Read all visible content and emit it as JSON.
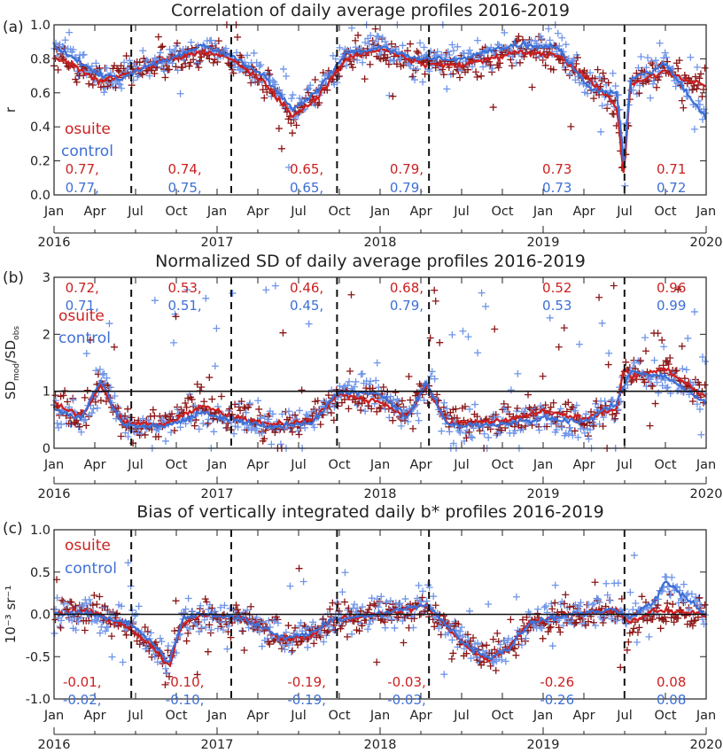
{
  "colors": {
    "osuite": "#cc1f1f",
    "control": "#3d6fd6",
    "scatter_osuite": "#8b1616",
    "scatter_control": "#6f94e8"
  },
  "year_labels": [
    "2016",
    "2017",
    "2018",
    "2019",
    "2020"
  ],
  "month_labels": [
    "Jan",
    "Apr",
    "Jul",
    "Oct",
    "Jan",
    "Apr",
    "Jul",
    "Oct",
    "Jan",
    "Apr",
    "Jul",
    "Oct",
    "Jan",
    "Apr",
    "Jul",
    "Oct",
    "Jan"
  ],
  "legend": {
    "osuite": "osuite",
    "control": "control"
  },
  "chart_data": [
    {
      "type": "scatter",
      "panel": "(a)",
      "title": "Correlation of daily average profiles 2016-2019",
      "ylabel": "r",
      "ylim": [
        0,
        1
      ],
      "yticks": [
        "0.0",
        "0.2",
        "0.4",
        "0.6",
        "0.8",
        "1.0"
      ],
      "xlim": [
        "2016-01-01",
        "2020-01-01"
      ],
      "period_boundaries": [
        "2016-06-22",
        "2017-02-01",
        "2017-09-26",
        "2018-04-20",
        "2019-07-02"
      ],
      "legend_position": "left-middle",
      "series": [
        {
          "name": "osuite",
          "anchors": [
            [
              "2016-01-01",
              0.82
            ],
            [
              "2016-04-15",
              0.67
            ],
            [
              "2016-06-01",
              0.7
            ],
            [
              "2016-09-01",
              0.79
            ],
            [
              "2016-12-01",
              0.84
            ],
            [
              "2017-02-01",
              0.8
            ],
            [
              "2017-04-15",
              0.66
            ],
            [
              "2017-06-20",
              0.46
            ],
            [
              "2017-08-15",
              0.58
            ],
            [
              "2017-10-15",
              0.8
            ],
            [
              "2018-01-01",
              0.86
            ],
            [
              "2018-04-01",
              0.77
            ],
            [
              "2018-07-01",
              0.76
            ],
            [
              "2018-09-01",
              0.8
            ],
            [
              "2018-11-01",
              0.84
            ],
            [
              "2019-02-01",
              0.82
            ],
            [
              "2019-04-15",
              0.68
            ],
            [
              "2019-06-15",
              0.52
            ],
            [
              "2019-07-01",
              0.1
            ],
            [
              "2019-07-15",
              0.65
            ],
            [
              "2019-10-01",
              0.72
            ],
            [
              "2019-12-31",
              0.64
            ]
          ]
        },
        {
          "name": "control",
          "anchors": [
            [
              "2016-01-01",
              0.88
            ],
            [
              "2016-04-15",
              0.7
            ],
            [
              "2016-06-01",
              0.69
            ],
            [
              "2016-09-01",
              0.79
            ],
            [
              "2016-12-01",
              0.88
            ],
            [
              "2017-02-01",
              0.82
            ],
            [
              "2017-04-15",
              0.7
            ],
            [
              "2017-06-20",
              0.5
            ],
            [
              "2017-08-15",
              0.62
            ],
            [
              "2017-10-15",
              0.83
            ],
            [
              "2018-01-01",
              0.87
            ],
            [
              "2018-04-01",
              0.8
            ],
            [
              "2018-07-01",
              0.8
            ],
            [
              "2018-09-01",
              0.84
            ],
            [
              "2018-11-01",
              0.88
            ],
            [
              "2019-02-01",
              0.87
            ],
            [
              "2019-04-15",
              0.62
            ],
            [
              "2019-06-15",
              0.6
            ],
            [
              "2019-07-01",
              0.18
            ],
            [
              "2019-07-15",
              0.68
            ],
            [
              "2019-10-01",
              0.77
            ],
            [
              "2019-12-31",
              0.45
            ]
          ]
        }
      ],
      "period_stats": [
        {
          "date": "2016-03-04",
          "osuite": "0.77,",
          "control": "0.77,"
        },
        {
          "date": "2016-10-20",
          "osuite": "0.74,",
          "control": "0.75,"
        },
        {
          "date": "2017-07-20",
          "osuite": "0.65,",
          "control": "0.65,"
        },
        {
          "date": "2018-03-01",
          "osuite": "0.79,",
          "control": "0.79,"
        },
        {
          "date": "2019-02-01",
          "osuite": "0.73",
          "control": "0.73"
        },
        {
          "date": "2019-10-15",
          "osuite": "0.71",
          "control": "0.72"
        }
      ]
    },
    {
      "type": "scatter",
      "panel": "(b)",
      "title": "Normalized SD of daily average profiles 2016-2019",
      "ylabel": "SDmod/SDobs",
      "ylim": [
        0,
        3
      ],
      "yticks": [
        "0",
        "1",
        "2",
        "3"
      ],
      "reference_line": 1,
      "xlim": [
        "2016-01-01",
        "2020-01-01"
      ],
      "period_boundaries": [
        "2016-06-22",
        "2017-02-01",
        "2017-09-26",
        "2018-04-20",
        "2019-07-02"
      ],
      "legend_position": "top-left",
      "series": [
        {
          "name": "osuite",
          "anchors": [
            [
              "2016-01-01",
              0.8
            ],
            [
              "2016-03-01",
              0.55
            ],
            [
              "2016-04-15",
              1.1
            ],
            [
              "2016-06-01",
              0.45
            ],
            [
              "2016-09-01",
              0.4
            ],
            [
              "2016-12-01",
              0.75
            ],
            [
              "2017-02-01",
              0.55
            ],
            [
              "2017-05-01",
              0.42
            ],
            [
              "2017-08-01",
              0.48
            ],
            [
              "2017-10-01",
              0.95
            ],
            [
              "2018-01-01",
              0.8
            ],
            [
              "2018-03-01",
              0.55
            ],
            [
              "2018-04-15",
              1.1
            ],
            [
              "2018-06-01",
              0.45
            ],
            [
              "2018-10-01",
              0.48
            ],
            [
              "2019-01-01",
              0.65
            ],
            [
              "2019-04-01",
              0.52
            ],
            [
              "2019-06-15",
              0.7
            ],
            [
              "2019-07-01",
              1.45
            ],
            [
              "2019-07-15",
              1.25
            ],
            [
              "2019-10-01",
              1.4
            ],
            [
              "2019-12-31",
              0.9
            ]
          ]
        },
        {
          "name": "control",
          "anchors": [
            [
              "2016-01-01",
              0.7
            ],
            [
              "2016-03-01",
              0.5
            ],
            [
              "2016-04-15",
              1.2
            ],
            [
              "2016-06-01",
              0.42
            ],
            [
              "2016-09-01",
              0.38
            ],
            [
              "2016-12-01",
              0.62
            ],
            [
              "2017-02-01",
              0.5
            ],
            [
              "2017-05-01",
              0.38
            ],
            [
              "2017-08-01",
              0.45
            ],
            [
              "2017-10-01",
              1.0
            ],
            [
              "2018-01-01",
              0.95
            ],
            [
              "2018-03-01",
              0.55
            ],
            [
              "2018-04-15",
              1.15
            ],
            [
              "2018-06-01",
              0.4
            ],
            [
              "2018-10-01",
              0.42
            ],
            [
              "2019-01-01",
              0.52
            ],
            [
              "2019-04-01",
              0.45
            ],
            [
              "2019-06-15",
              0.8
            ],
            [
              "2019-07-01",
              1.1
            ],
            [
              "2019-07-15",
              1.35
            ],
            [
              "2019-10-01",
              1.25
            ],
            [
              "2019-12-31",
              0.8
            ]
          ]
        }
      ],
      "period_stats": [
        {
          "date": "2016-03-04",
          "osuite": "0.72,",
          "control": "0.71,"
        },
        {
          "date": "2016-10-20",
          "osuite": "0.53,",
          "control": "0.51,"
        },
        {
          "date": "2017-07-20",
          "osuite": "0.46,",
          "control": "0.45,"
        },
        {
          "date": "2018-03-01",
          "osuite": "0.68,",
          "control": "0.79,"
        },
        {
          "date": "2019-02-01",
          "osuite": "0.52",
          "control": "0.53"
        },
        {
          "date": "2019-10-15",
          "osuite": "0.96",
          "control": "0.99"
        }
      ]
    },
    {
      "type": "scatter",
      "panel": "(c)",
      "title": "Bias of vertically integrated daily b* profiles 2016-2019",
      "ylabel": "10⁻³ sr⁻¹",
      "ylim": [
        -1,
        1
      ],
      "yticks": [
        "-1.0",
        "-0.5",
        "0.0",
        "0.5",
        "1.0"
      ],
      "reference_line": 0,
      "xlim": [
        "2016-01-01",
        "2020-01-01"
      ],
      "period_boundaries": [
        "2016-06-22",
        "2017-02-01",
        "2017-09-26",
        "2018-04-20",
        "2019-07-02"
      ],
      "legend_position": "top-left",
      "series": [
        {
          "name": "osuite",
          "anchors": [
            [
              "2016-01-01",
              0.0
            ],
            [
              "2016-03-15",
              0.05
            ],
            [
              "2016-05-01",
              -0.05
            ],
            [
              "2016-06-15",
              -0.15
            ],
            [
              "2016-08-01",
              -0.35
            ],
            [
              "2016-09-15",
              -0.62
            ],
            [
              "2016-10-15",
              -0.1
            ],
            [
              "2016-12-01",
              0.0
            ],
            [
              "2017-03-01",
              -0.05
            ],
            [
              "2017-06-01",
              -0.3
            ],
            [
              "2017-08-01",
              -0.25
            ],
            [
              "2017-09-20",
              -0.05
            ],
            [
              "2018-01-01",
              0.0
            ],
            [
              "2018-04-15",
              0.1
            ],
            [
              "2018-05-15",
              -0.05
            ],
            [
              "2018-07-15",
              -0.4
            ],
            [
              "2018-09-01",
              -0.55
            ],
            [
              "2018-10-15",
              -0.4
            ],
            [
              "2018-12-01",
              -0.1
            ],
            [
              "2019-03-01",
              0.0
            ],
            [
              "2019-06-15",
              0.05
            ],
            [
              "2019-07-15",
              -0.1
            ],
            [
              "2019-09-15",
              0.05
            ],
            [
              "2019-12-31",
              0.0
            ]
          ]
        },
        {
          "name": "control",
          "anchors": [
            [
              "2016-01-01",
              0.0
            ],
            [
              "2016-03-15",
              0.02
            ],
            [
              "2016-05-01",
              -0.05
            ],
            [
              "2016-06-15",
              -0.1
            ],
            [
              "2016-08-01",
              -0.3
            ],
            [
              "2016-09-15",
              -0.58
            ],
            [
              "2016-10-15",
              -0.05
            ],
            [
              "2016-12-01",
              0.0
            ],
            [
              "2017-03-01",
              -0.05
            ],
            [
              "2017-06-01",
              -0.28
            ],
            [
              "2017-08-01",
              -0.22
            ],
            [
              "2017-09-20",
              -0.05
            ],
            [
              "2018-01-01",
              0.0
            ],
            [
              "2018-04-15",
              0.12
            ],
            [
              "2018-05-15",
              -0.05
            ],
            [
              "2018-07-15",
              -0.38
            ],
            [
              "2018-09-01",
              -0.52
            ],
            [
              "2018-10-15",
              -0.4
            ],
            [
              "2018-12-01",
              -0.1
            ],
            [
              "2019-03-01",
              0.0
            ],
            [
              "2019-06-15",
              0.05
            ],
            [
              "2019-07-15",
              -0.05
            ],
            [
              "2019-09-15",
              0.2
            ],
            [
              "2019-10-01",
              0.4
            ],
            [
              "2019-12-31",
              0.0
            ]
          ]
        }
      ],
      "period_stats": [
        {
          "date": "2016-03-04",
          "osuite": "-0.01,",
          "control": "-0.02,"
        },
        {
          "date": "2016-10-20",
          "osuite": "-0.10,",
          "control": "-0.10,"
        },
        {
          "date": "2017-07-20",
          "osuite": "-0.19,",
          "control": "-0.19,"
        },
        {
          "date": "2018-03-01",
          "osuite": "-0.03,",
          "control": "-0.03,"
        },
        {
          "date": "2019-02-01",
          "osuite": "-0.26",
          "control": "-0.26"
        },
        {
          "date": "2019-10-15",
          "osuite": "0.08",
          "control": "0.08"
        }
      ]
    }
  ]
}
